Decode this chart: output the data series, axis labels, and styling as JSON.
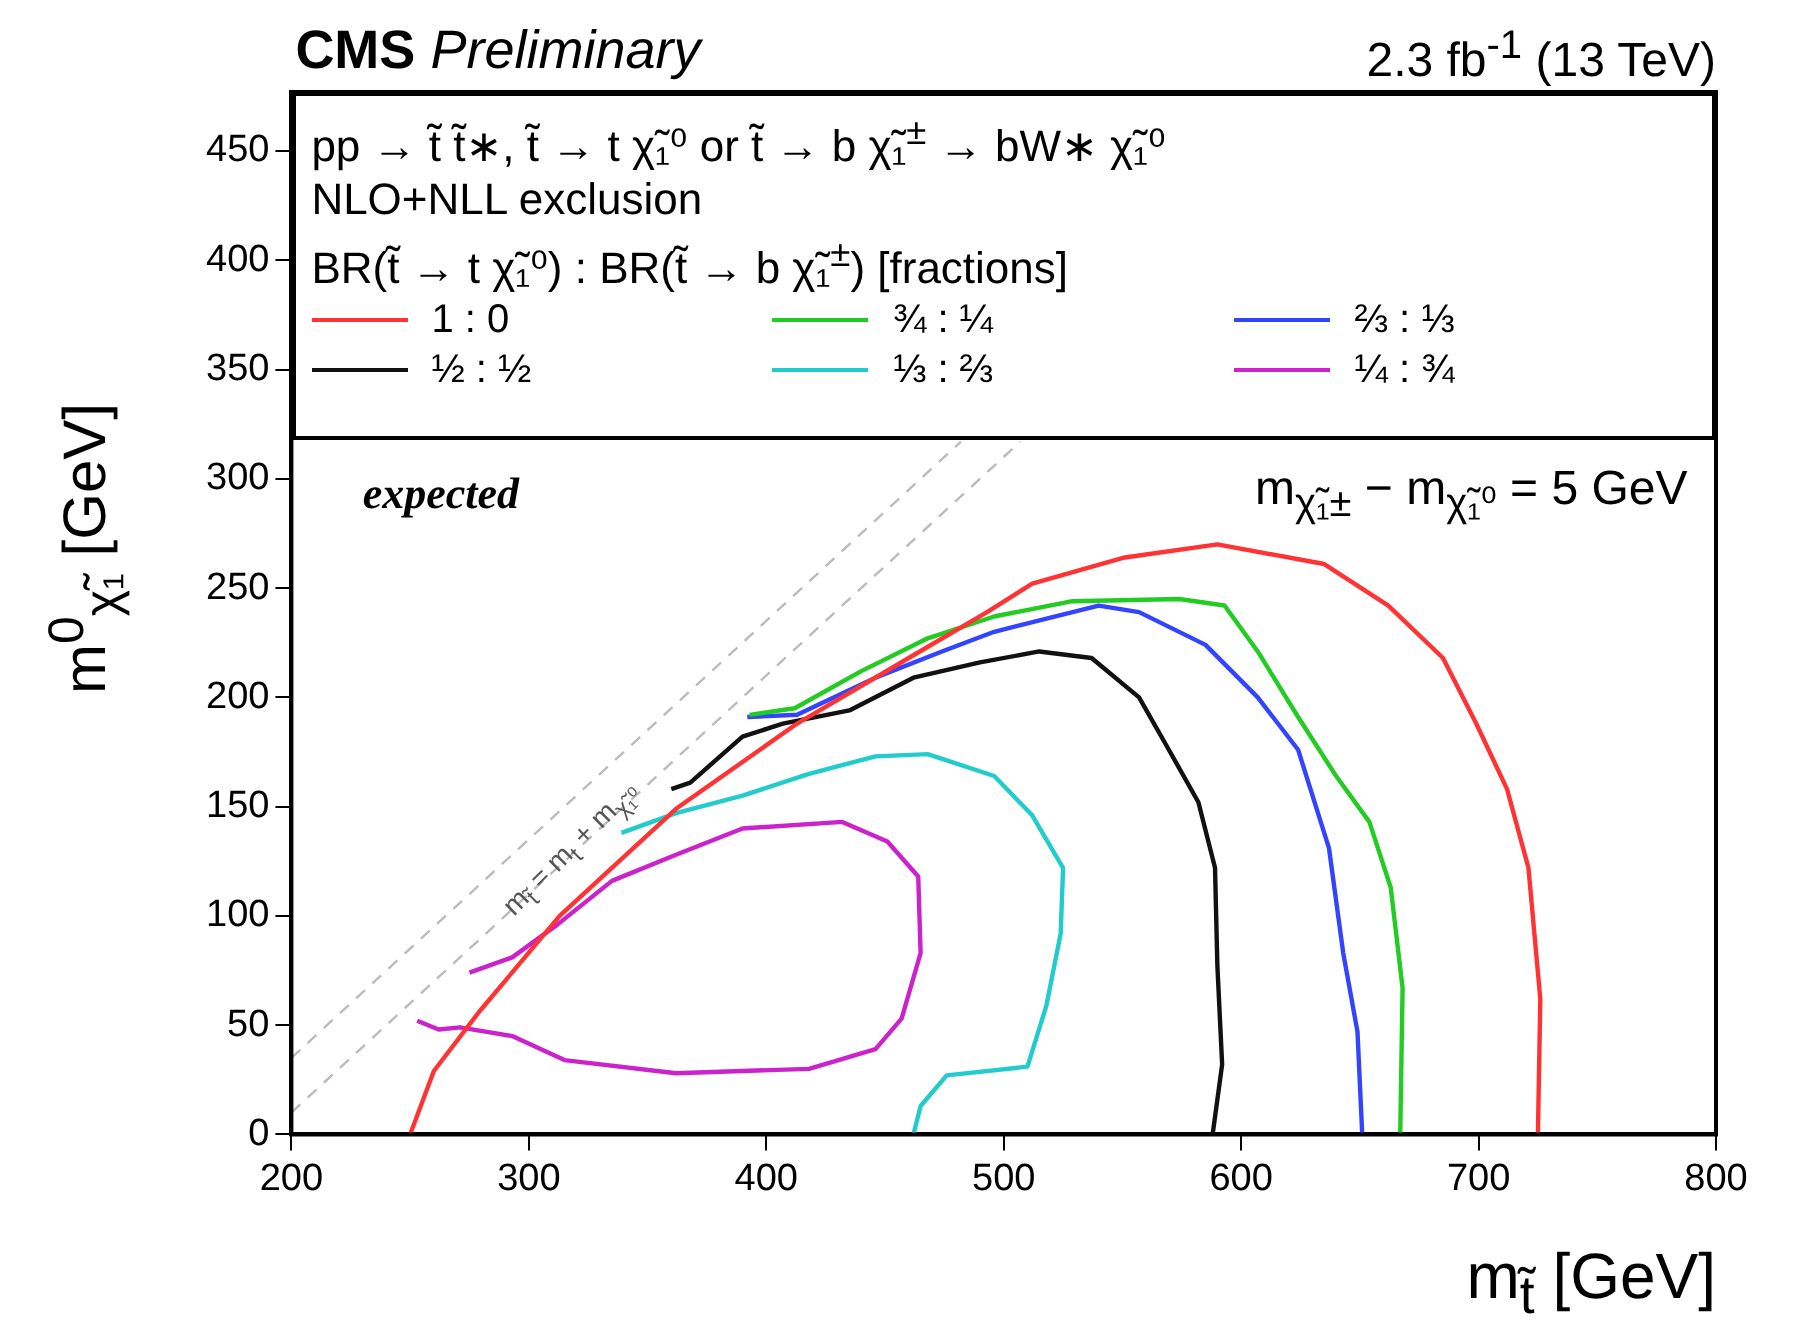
{
  "chart_data": {
    "type": "line",
    "title": "CMS Preliminary",
    "subtitle": "2.3 fb$^{-1}$ (13 TeV)",
    "xlabel": "m$_{t̃}$ [GeV]",
    "ylabel": "m$^{0}$$_{χ̃₁}$ [GeV]",
    "legend_title": "BR(t̃ → t χ̃₁⁰) : BR(t̃ → b χ̃₁$^{±}$) [fractions]",
    "annotations": [
      "pp → t̃ t̃∗,     t̃ → t χ̃₁⁰  or  t̃ → b χ̃₁$^{±}$ → bW∗ χ̃₁⁰",
      "NLO+NLL exclusion",
      "expected",
      "m$_{χ̃₁±}$ − m$_{χ̃₁⁰}$ = 5 GeV",
      {
        "text": "m$_{t̃}$ = m$_{t}$ + m$_{χ̃₁⁰}$",
        "x": 318,
        "y": 130
      }
    ],
    "xlim": [
      200,
      800
    ],
    "ylim": [
      0,
      477
    ],
    "xticks": [
      200,
      300,
      400,
      500,
      600,
      700,
      800
    ],
    "yticks": [
      0,
      50,
      100,
      150,
      200,
      250,
      300,
      350,
      400,
      450
    ],
    "grid": false,
    "legend": "top",
    "marker": "none",
    "line_style": "solid",
    "series": [
      {
        "name": "1 : 0",
        "color": "#ff3333",
        "x": [
          250,
          260,
          279,
          313,
          362,
          413,
          460,
          493,
          512,
          551,
          590,
          635,
          662,
          685,
          699,
          712,
          721,
          726,
          725
        ],
        "values": [
          0,
          29,
          56,
          100,
          149,
          188,
          218,
          239,
          252,
          264,
          270,
          261,
          242,
          218,
          188,
          158,
          122,
          62,
          0
        ]
      },
      {
        "name": "¾ : ¼",
        "color": "#22cc22",
        "x": [
          393,
          412,
          440,
          468,
          496,
          529,
          574,
          593,
          607,
          624,
          640,
          654,
          663,
          668,
          667
        ],
        "values": [
          192,
          195,
          212,
          227,
          237,
          244,
          245,
          242,
          221,
          191,
          164,
          143,
          113,
          67,
          0
        ]
      },
      {
        "name": "⅔ : ⅓",
        "color": "#3344ff",
        "x": [
          392,
          413,
          446,
          474,
          496,
          540,
          557,
          585,
          607,
          624,
          637,
          643,
          649,
          651
        ],
        "values": [
          191,
          192,
          209,
          221,
          230,
          242,
          239,
          224,
          200,
          176,
          131,
          83,
          47,
          0
        ]
      },
      {
        "name": "½ : ½",
        "color": "#111111",
        "x": [
          360,
          368,
          390,
          407,
          435,
          462,
          490,
          515,
          537,
          557,
          568,
          582,
          589,
          590,
          592,
          588
        ],
        "values": [
          158,
          161,
          182,
          188,
          194,
          209,
          216,
          221,
          218,
          200,
          179,
          152,
          122,
          77,
          32,
          0
        ]
      },
      {
        "name": "⅓ : ⅔",
        "color": "#22cccc",
        "x": [
          339,
          362,
          390,
          418,
          446,
          468,
          496,
          512,
          525,
          524,
          518,
          510,
          476,
          465,
          462
        ],
        "values": [
          138,
          147,
          155,
          165,
          173,
          174,
          164,
          146,
          122,
          92,
          59,
          31,
          27,
          13,
          0
        ]
      },
      {
        "name": "¼ : ¾",
        "color": "#cc22cc",
        "x": [
          275,
          293,
          312,
          335,
          362,
          390,
          432,
          451,
          464,
          465,
          457,
          446,
          418,
          362,
          315,
          293,
          271,
          262,
          253
        ],
        "values": [
          74,
          81,
          96,
          116,
          128,
          140,
          143,
          134,
          118,
          83,
          53,
          39,
          30,
          28,
          34,
          45,
          49,
          48,
          52
        ]
      },
      {
        "color": "#bbbbbb",
        "line_style": "dashed",
        "x": [
          200,
          482
        ],
        "values": [
          35,
          317
        ]
      },
      {
        "color": "#bbbbbb",
        "line_style": "dashed",
        "x": [
          200,
          507
        ],
        "values": [
          10,
          317
        ]
      }
    ]
  }
}
